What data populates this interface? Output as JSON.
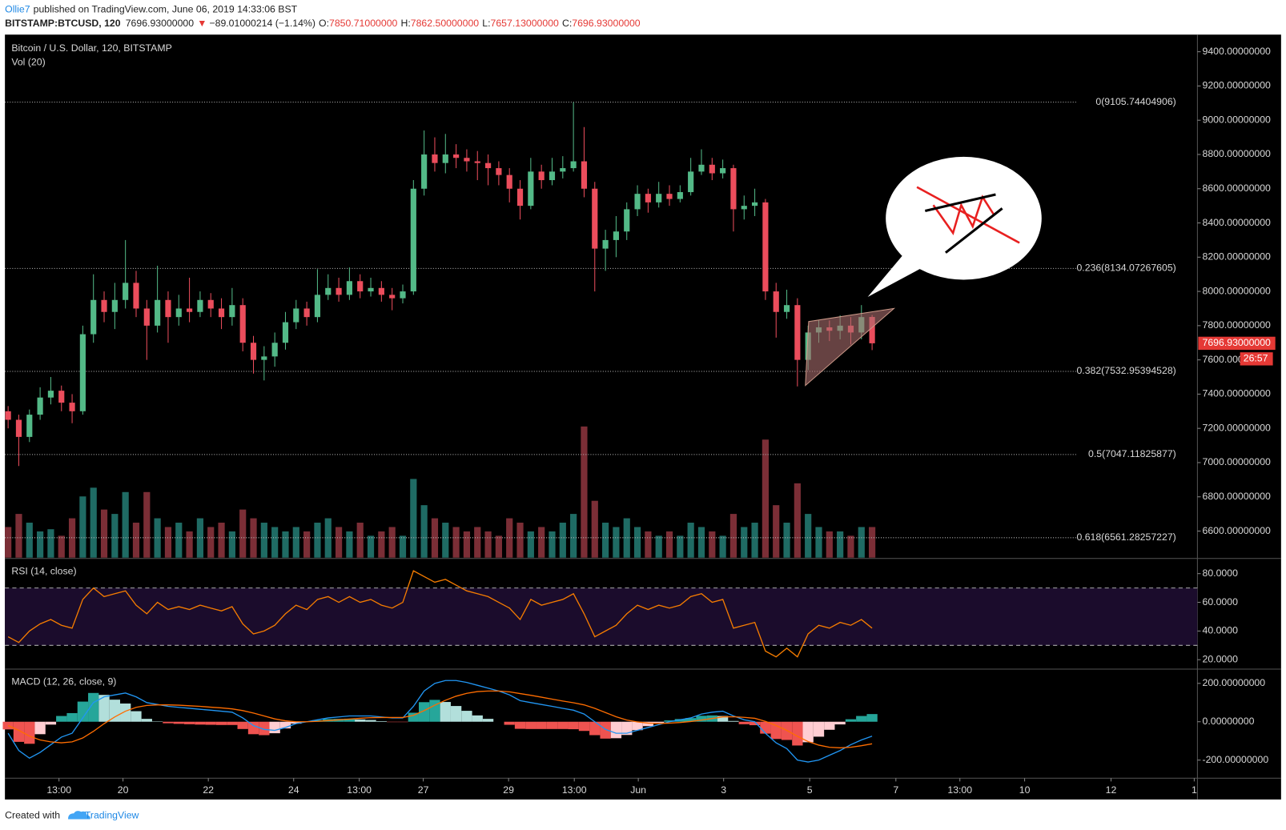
{
  "header": {
    "author": "Ollie7",
    "published": "published on TradingView.com, June 06, 2019 14:33:06 BST",
    "symbol": "BITSTAMP:BTCUSD, 120",
    "price": "7696.93000000",
    "arrow": "▼",
    "change": "−89.01000214 (−1.14%)",
    "ohlc": [
      {
        "label": "O:",
        "value": "7850.71000000"
      },
      {
        "label": "H:",
        "value": "7862.50000000"
      },
      {
        "label": "L:",
        "value": "7657.13000000"
      },
      {
        "label": "C:",
        "value": "7696.93000000"
      }
    ]
  },
  "footer": {
    "created": "Created with",
    "brand": "TradingView"
  },
  "chart_data": [
    {
      "type": "candlestick",
      "title": "Bitcoin / U.S. Dollar, 120, BITSTAMP",
      "volume_title": "Vol (20)",
      "xlim": [
        -0.3,
        111.5
      ],
      "xticks": [
        {
          "value": 4.77,
          "label": "13:00"
        },
        {
          "value": 10.77,
          "label": "20"
        },
        {
          "value": 18.77,
          "label": "22"
        },
        {
          "value": 26.77,
          "label": "24"
        },
        {
          "value": 32.92,
          "label": "13:00"
        },
        {
          "value": 38.92,
          "label": "27"
        },
        {
          "value": 46.92,
          "label": "29"
        },
        {
          "value": 53.08,
          "label": "13:00"
        },
        {
          "value": 59.08,
          "label": "Jun"
        },
        {
          "value": 67.08,
          "label": "3"
        },
        {
          "value": 75.15,
          "label": "5"
        },
        {
          "value": 83.23,
          "label": "7"
        },
        {
          "value": 89.23,
          "label": "13:00"
        },
        {
          "value": 95.3,
          "label": "10"
        },
        {
          "value": 103.4,
          "label": "12"
        },
        {
          "value": 111.2,
          "label": "1"
        }
      ],
      "ylim": [
        6440,
        9500
      ],
      "yticks": [
        {
          "value": 9400,
          "label": "9400.00000000"
        },
        {
          "value": 9200,
          "label": "9200.00000000"
        },
        {
          "value": 9000,
          "label": "9000.00000000"
        },
        {
          "value": 8800,
          "label": "8800.00000000"
        },
        {
          "value": 8600,
          "label": "8600.00000000"
        },
        {
          "value": 8400,
          "label": "8400.00000000"
        },
        {
          "value": 8200,
          "label": "8200.00000000"
        },
        {
          "value": 8000,
          "label": "8000.00000000"
        },
        {
          "value": 7800,
          "label": "7800.00000000"
        },
        {
          "value": 7600,
          "label": "7600.00000000"
        },
        {
          "value": 7400,
          "label": "7400.00000000"
        },
        {
          "value": 7200,
          "label": "7200.00000000"
        },
        {
          "value": 7000,
          "label": "7000.00000000"
        },
        {
          "value": 6800,
          "label": "6800.00000000"
        },
        {
          "value": 6600,
          "label": "6600.00000000"
        }
      ],
      "open": [
        7300,
        7250,
        7150,
        7280,
        7380,
        7420,
        7350,
        7300,
        7750,
        7950,
        7880,
        7950,
        8050,
        7900,
        7800,
        7950,
        7850,
        7900,
        7880,
        7950,
        7900,
        7850,
        7920,
        7700,
        7600,
        7620,
        7700,
        7820,
        7900,
        7850,
        7980,
        8020,
        7980,
        8060,
        8000,
        8020,
        7980,
        7960,
        8000,
        8600,
        8800,
        8750,
        8800,
        8780,
        8760,
        8750,
        8720,
        8680,
        8600,
        8500,
        8700,
        8650,
        8700,
        8720,
        8760,
        8600,
        8250,
        8300,
        8350,
        8480,
        8570,
        8520,
        8570,
        8540,
        8580,
        8700,
        8740,
        8690,
        8720,
        8480,
        8500,
        8520,
        8000,
        7880,
        7920,
        7600,
        7760,
        7790,
        7770,
        7800,
        7760,
        7850.71
      ],
      "high": [
        7330,
        7280,
        7310,
        7440,
        7500,
        7450,
        7400,
        7800,
        8100,
        8000,
        8050,
        8300,
        8120,
        7950,
        8150,
        8000,
        7980,
        8080,
        8000,
        7990,
        7960,
        8020,
        7960,
        7740,
        7680,
        7760,
        7880,
        7950,
        7940,
        8130,
        8100,
        8080,
        8140,
        8100,
        8080,
        8060,
        8020,
        8040,
        8650,
        8940,
        8900,
        8920,
        8860,
        8830,
        8820,
        8800,
        8760,
        8720,
        8650,
        8780,
        8740,
        8780,
        8790,
        9105,
        8960,
        8640,
        8360,
        8440,
        8520,
        8620,
        8600,
        8640,
        8620,
        8620,
        8780,
        8830,
        8780,
        8770,
        8740,
        8560,
        8600,
        8540,
        8050,
        8010,
        7960,
        7800,
        7830,
        7830,
        7860,
        7850,
        7920,
        7862.5
      ],
      "low": [
        7200,
        6980,
        7120,
        7250,
        7340,
        7300,
        7230,
        7280,
        7700,
        7820,
        7780,
        7900,
        7850,
        7600,
        7760,
        7700,
        7800,
        7820,
        7850,
        7850,
        7780,
        7800,
        7650,
        7520,
        7480,
        7560,
        7660,
        7780,
        7800,
        7820,
        7950,
        7940,
        7950,
        7960,
        7970,
        7940,
        7890,
        7930,
        7980,
        8560,
        8700,
        8690,
        8720,
        8700,
        8650,
        8620,
        8620,
        8520,
        8420,
        8480,
        8600,
        8620,
        8660,
        8700,
        8550,
        8000,
        8120,
        8200,
        8300,
        8440,
        8460,
        8490,
        8500,
        8520,
        8560,
        8680,
        8650,
        8660,
        8350,
        8420,
        8440,
        7950,
        7730,
        7840,
        7445,
        7540,
        7700,
        7710,
        7720,
        7690,
        7720,
        7657.13
      ],
      "close": [
        7250,
        7150,
        7280,
        7380,
        7420,
        7350,
        7300,
        7750,
        7950,
        7880,
        7950,
        8050,
        7900,
        7800,
        7950,
        7850,
        7900,
        7880,
        7950,
        7900,
        7850,
        7920,
        7700,
        7600,
        7620,
        7700,
        7820,
        7900,
        7850,
        7980,
        8020,
        7980,
        8060,
        8000,
        8020,
        7980,
        7960,
        8000,
        8600,
        8800,
        8750,
        8800,
        8780,
        8760,
        8750,
        8720,
        8680,
        8600,
        8500,
        8700,
        8650,
        8700,
        8720,
        8760,
        8600,
        8250,
        8300,
        8350,
        8480,
        8570,
        8520,
        8570,
        8540,
        8580,
        8700,
        8740,
        8690,
        8720,
        8480,
        8500,
        8520,
        8000,
        7880,
        7920,
        7600,
        7760,
        7790,
        7770,
        7800,
        7760,
        7850,
        7696.93
      ],
      "volume": [
        700,
        1000,
        800,
        600,
        650,
        500,
        900,
        1400,
        1600,
        1100,
        1000,
        1500,
        800,
        1500,
        900,
        700,
        800,
        600,
        900,
        700,
        800,
        600,
        1100,
        900,
        800,
        700,
        600,
        700,
        600,
        800,
        900,
        700,
        600,
        800,
        500,
        600,
        700,
        500,
        1800,
        1200,
        900,
        800,
        700,
        600,
        700,
        600,
        500,
        900,
        800,
        600,
        700,
        600,
        800,
        1000,
        3000,
        1300,
        800,
        700,
        900,
        700,
        600,
        500,
        600,
        500,
        800,
        700,
        600,
        500,
        1000,
        700,
        800,
        2700,
        1200,
        800,
        1700,
        1000,
        700,
        600,
        600,
        500,
        700,
        700
      ],
      "up_color": "#53b987",
      "down_color": "#eb4d5c",
      "volume_colors": [
        "#1f6b64",
        "#7b2e36"
      ],
      "levels": [
        {
          "value": 9105.74404906,
          "label": "0(9105.74404906)"
        },
        {
          "value": 8134.07267605,
          "label": "0.236(8134.07267605)"
        },
        {
          "value": 7532.95394528,
          "label": "0.382(7532.95394528)"
        },
        {
          "value": 7047.11825877,
          "label": "0.5(7047.11825877)"
        },
        {
          "value": 6561.28257227,
          "label": "0.618(6561.28257227)"
        }
      ],
      "last_price": {
        "value": 7696.93,
        "label": "7696.93000000"
      },
      "countdown": "26:57"
    },
    {
      "type": "line",
      "title": "RSI (14, close)",
      "ylim": [
        14,
        90
      ],
      "yticks": [
        {
          "value": 80,
          "label": "80.0000"
        },
        {
          "value": 60,
          "label": "60.0000"
        },
        {
          "value": 40,
          "label": "40.0000"
        },
        {
          "value": 20,
          "label": "20.0000"
        }
      ],
      "bands": [
        70,
        30
      ],
      "band_color": "#1b0c2c",
      "series": [
        {
          "color": "#f57c00",
          "values": [
            36,
            32,
            40,
            45,
            48,
            44,
            42,
            62,
            70,
            64,
            66,
            68,
            58,
            52,
            60,
            55,
            57,
            55,
            58,
            56,
            54,
            57,
            45,
            38,
            40,
            44,
            52,
            58,
            55,
            62,
            64,
            60,
            64,
            60,
            62,
            58,
            56,
            60,
            82,
            78,
            74,
            76,
            72,
            68,
            66,
            64,
            60,
            56,
            48,
            62,
            58,
            60,
            62,
            66,
            52,
            36,
            40,
            44,
            52,
            58,
            55,
            58,
            56,
            58,
            64,
            66,
            60,
            62,
            42,
            44,
            46,
            26,
            22,
            28,
            22,
            38,
            44,
            42,
            46,
            44,
            48,
            42
          ]
        }
      ]
    },
    {
      "type": "line",
      "title": "MACD (12, 26, close, 9)",
      "ylim": [
        -290,
        270
      ],
      "yticks": [
        {
          "value": 200,
          "label": "200.00000000"
        },
        {
          "value": 0,
          "label": "0.00000000"
        },
        {
          "value": -200,
          "label": "-200.00000000"
        }
      ],
      "series": [
        {
          "type": "bar",
          "colors": [
            "#26a69a",
            "#b2dfdb",
            "#ef5350",
            "#ffcdd2"
          ],
          "values": [
            -40,
            -105,
            -115,
            -65,
            -15,
            30,
            45,
            105,
            150,
            140,
            115,
            95,
            55,
            15,
            2,
            -8,
            -11,
            -13,
            -15,
            -16,
            -17,
            -17,
            -38,
            -65,
            -70,
            -60,
            -35,
            -10,
            0,
            8,
            14,
            15,
            16,
            12,
            9,
            3,
            -2,
            -2,
            47,
            102,
            114,
            103,
            82,
            57,
            33,
            15,
            0,
            -16,
            -37,
            -38,
            -38,
            -38,
            -38,
            -39,
            -48,
            -70,
            -88,
            -86,
            -69,
            -44,
            -23,
            -6,
            7,
            14,
            19,
            31,
            33,
            30,
            4,
            -13,
            -18,
            -62,
            -90,
            -95,
            -124,
            -107,
            -78,
            -42,
            -14,
            13,
            30,
            40
          ]
        },
        {
          "color": "#2196f3",
          "values": [
            -60,
            -150,
            -190,
            -160,
            -120,
            -80,
            -60,
            20,
            100,
            130,
            140,
            150,
            130,
            100,
            90,
            80,
            75,
            70,
            65,
            60,
            55,
            50,
            20,
            -20,
            -40,
            -45,
            -30,
            -10,
            0,
            10,
            20,
            25,
            30,
            30,
            30,
            25,
            20,
            20,
            80,
            160,
            200,
            215,
            215,
            205,
            190,
            175,
            160,
            140,
            110,
            100,
            90,
            80,
            70,
            60,
            40,
            0,
            -40,
            -60,
            -60,
            -45,
            -30,
            -15,
            0,
            10,
            20,
            40,
            50,
            55,
            30,
            10,
            0,
            -60,
            -110,
            -140,
            -200,
            -210,
            -200,
            -175,
            -150,
            -120,
            -95,
            -75
          ]
        },
        {
          "color": "#ff6d00",
          "values": [
            -20,
            -45,
            -75,
            -95,
            -105,
            -110,
            -105,
            -85,
            -50,
            -10,
            25,
            55,
            75,
            85,
            88,
            88,
            86,
            83,
            80,
            76,
            72,
            67,
            58,
            45,
            30,
            15,
            5,
            0,
            0,
            2,
            6,
            10,
            14,
            18,
            21,
            22,
            22,
            22,
            33,
            58,
            86,
            112,
            133,
            148,
            157,
            160,
            160,
            156,
            147,
            138,
            128,
            118,
            108,
            99,
            88,
            70,
            48,
            26,
            9,
            -1,
            -7,
            -9,
            -7,
            -4,
            1,
            9,
            17,
            25,
            26,
            23,
            18,
            2,
            -20,
            -45,
            -76,
            -103,
            -122,
            -133,
            -136,
            -133,
            -125,
            -115
          ]
        }
      ]
    }
  ]
}
